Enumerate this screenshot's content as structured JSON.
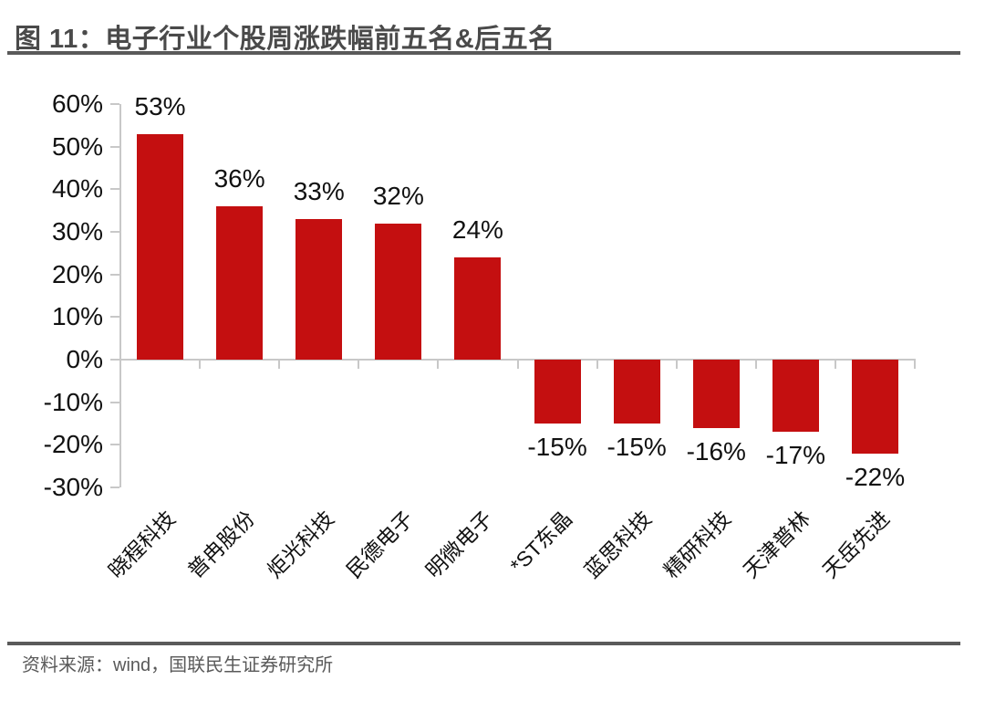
{
  "header": {
    "title": "图 11：电子行业个股周涨跌幅前五名&后五名"
  },
  "footer": {
    "source": "资料来源：wind，国联民生证券研究所"
  },
  "colors": {
    "bar": "#C40F10",
    "axis": "#C8C8C8",
    "text": "#111111",
    "title_text": "#4A4A4A",
    "source_text": "#595959",
    "rule": "#5A5A5A"
  },
  "chart_data": {
    "type": "bar",
    "title": "电子行业个股周涨跌幅前五名&后五名",
    "categories": [
      "晓程科技",
      "普冉股份",
      "炬光科技",
      "民德电子",
      "明微电子",
      "*ST东晶",
      "蓝思科技",
      "精研科技",
      "天津普林",
      "天岳先进"
    ],
    "values": [
      53,
      36,
      33,
      32,
      24,
      -15,
      -15,
      -16,
      -17,
      -22
    ],
    "value_labels": [
      "53%",
      "36%",
      "33%",
      "32%",
      "24%",
      "-15%",
      "-15%",
      "-16%",
      "-17%",
      "-22%"
    ],
    "unit": "%",
    "xlabel": "",
    "ylabel": "",
    "y_axis": {
      "tick_values": [
        60,
        50,
        40,
        30,
        20,
        10,
        0,
        -10,
        -20,
        -30
      ],
      "tick_labels": [
        "60%",
        "50%",
        "40%",
        "30%",
        "20%",
        "10%",
        "0%",
        "-10%",
        "-20%",
        "-30%"
      ],
      "range": [
        -30,
        60
      ]
    },
    "grid": false,
    "legend": false,
    "bar_color": "#C40F10"
  }
}
